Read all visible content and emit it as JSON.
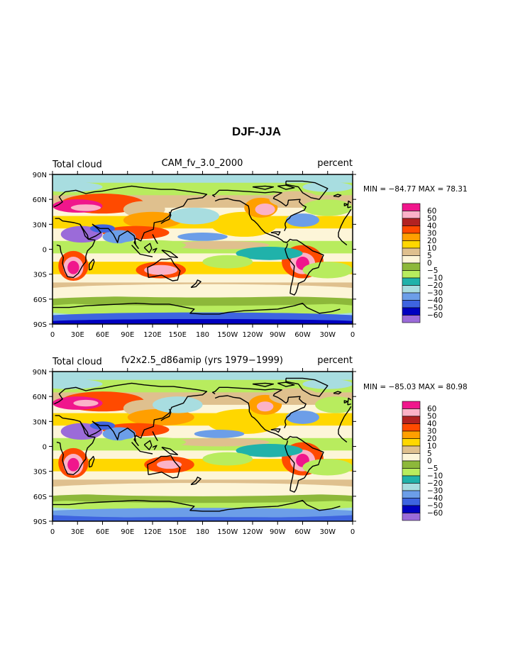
{
  "title": "DJF-JJA",
  "colors": {
    "levels": [
      "#f0168c",
      "#fbb2c8",
      "#b22222",
      "#ff4a00",
      "#ff9f00",
      "#ffd700",
      "#dfc08e",
      "#fdf5d8",
      "#8db83a",
      "#b8ec5e",
      "#20b2aa",
      "#a8dde0",
      "#6c9ee8",
      "#3e64e0",
      "#0000c0",
      "#9b6bd9"
    ],
    "coast": "#000000"
  },
  "colorbar": {
    "labels": [
      "60",
      "50",
      "40",
      "30",
      "20",
      "10",
      "5",
      "0",
      "−5",
      "−10",
      "−20",
      "−30",
      "−40",
      "−50",
      "−60"
    ]
  },
  "axis": {
    "lat_labels": [
      "90N",
      "60N",
      "30N",
      "0",
      "30S",
      "60S",
      "90S"
    ],
    "lon_labels": [
      "0",
      "30E",
      "60E",
      "90E",
      "120E",
      "150E",
      "180",
      "150W",
      "120W",
      "90W",
      "60W",
      "30W",
      "0"
    ]
  },
  "panels": [
    {
      "left_label": "Total cloud",
      "center_label": "CAM_fv_3.0_2000",
      "right_label": "percent",
      "stats": "MIN = −84.77 MAX =  78.31"
    },
    {
      "left_label": "Total cloud",
      "center_label": "fv2x2.5_d86amip (yrs 1979−1999)",
      "right_label": "percent",
      "stats": "MIN = −85.03 MAX =  80.98"
    }
  ]
}
